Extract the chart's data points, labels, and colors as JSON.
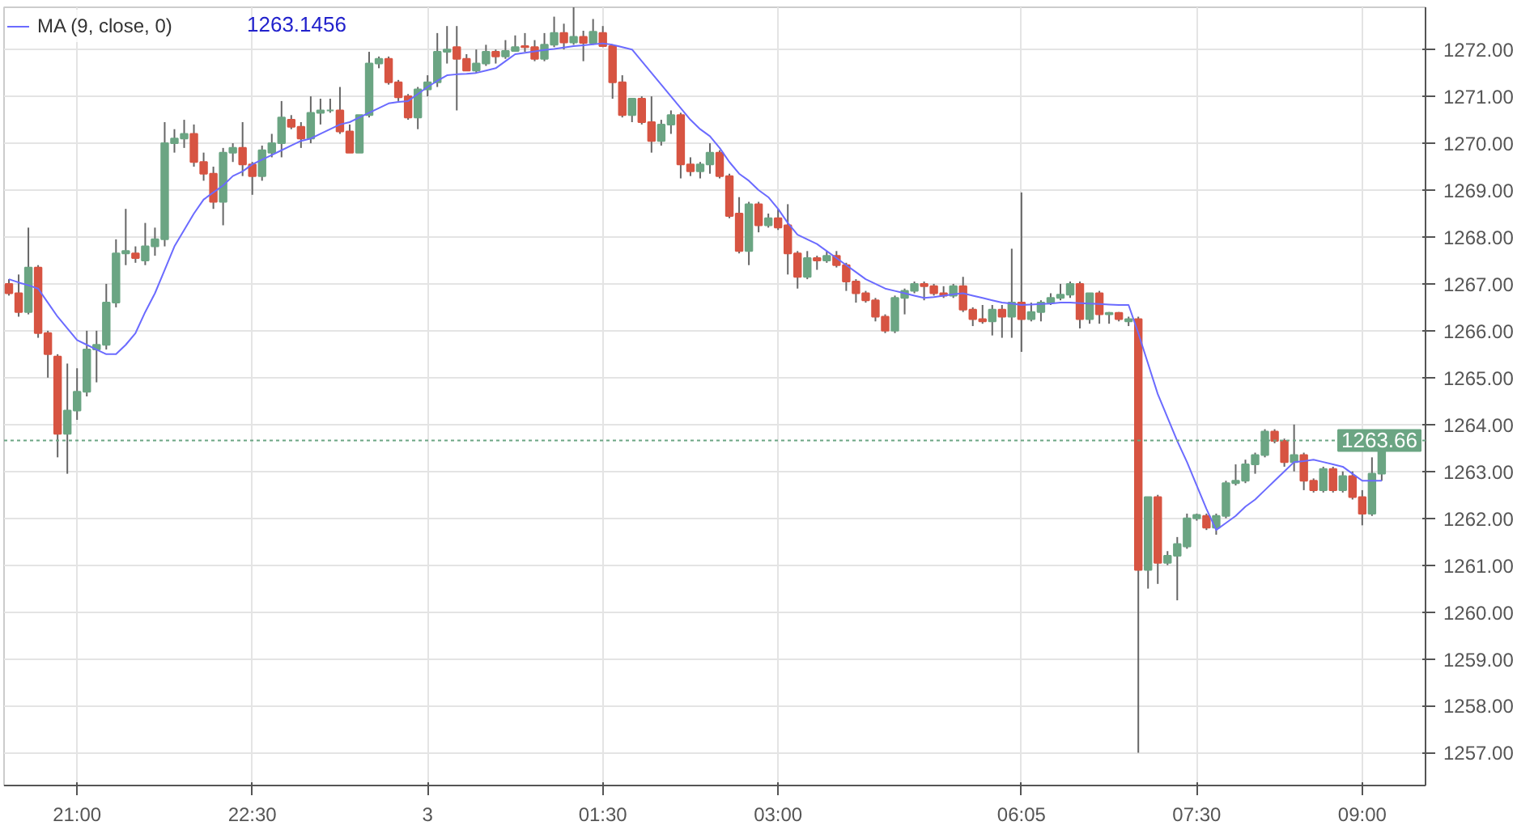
{
  "chart_data": {
    "type": "candlestick",
    "categories": [
      null,
      null,
      null,
      null,
      null,
      null,
      null,
      "21:00",
      null,
      null,
      null,
      null,
      null,
      null,
      null,
      null,
      null,
      null,
      null,
      null,
      null,
      null,
      null,
      null,
      null,
      "22:30",
      null,
      null,
      null,
      null,
      null,
      null,
      null,
      null,
      null,
      null,
      null,
      null,
      null,
      null,
      null,
      null,
      null,
      "3",
      null,
      null,
      null,
      null,
      null,
      null,
      null,
      null,
      null,
      null,
      null,
      null,
      null,
      null,
      null,
      null,
      null,
      "01:30",
      null,
      null,
      null,
      null,
      null,
      null,
      null,
      null,
      null,
      null,
      null,
      null,
      null,
      null,
      null,
      null,
      null,
      "03:00",
      null,
      null,
      null,
      null,
      null,
      null,
      null,
      null,
      null,
      null,
      null,
      null,
      null,
      null,
      null,
      null,
      null,
      null,
      null,
      null,
      null,
      null,
      null,
      null,
      "06:05",
      null,
      null,
      null,
      null,
      null,
      null,
      null,
      null,
      null,
      null,
      null,
      null,
      null,
      null,
      null,
      null,
      null,
      "07:30",
      null,
      null,
      null,
      null,
      null,
      null,
      null,
      null,
      null,
      null,
      null,
      null,
      null,
      null,
      null,
      null,
      "09:00",
      null,
      null
    ],
    "ohlc": [
      [
        1267.0,
        1267.1,
        1266.75,
        1266.8
      ],
      [
        1266.8,
        1267.2,
        1266.3,
        1266.4
      ],
      [
        1266.4,
        1268.2,
        1266.35,
        1267.35
      ],
      [
        1267.35,
        1267.4,
        1265.85,
        1265.95
      ],
      [
        1265.95,
        1266.0,
        1265.0,
        1265.5
      ],
      [
        1265.45,
        1265.5,
        1263.3,
        1263.8
      ],
      [
        1263.8,
        1265.3,
        1262.95,
        1264.3
      ],
      [
        1264.3,
        1265.2,
        1264.1,
        1264.7
      ],
      [
        1264.7,
        1266.0,
        1264.6,
        1265.6
      ],
      [
        1265.6,
        1266.0,
        1264.9,
        1265.7
      ],
      [
        1265.7,
        1267.0,
        1265.6,
        1266.6
      ],
      [
        1266.6,
        1267.95,
        1266.5,
        1267.65
      ],
      [
        1267.65,
        1268.6,
        1267.4,
        1267.7
      ],
      [
        1267.65,
        1267.8,
        1267.45,
        1267.55
      ],
      [
        1267.5,
        1268.3,
        1267.4,
        1267.8
      ],
      [
        1267.8,
        1268.2,
        1267.6,
        1267.95
      ],
      [
        1267.95,
        1270.45,
        1267.8,
        1270.0
      ],
      [
        1270.0,
        1270.3,
        1269.8,
        1270.1
      ],
      [
        1270.1,
        1270.5,
        1269.9,
        1270.2
      ],
      [
        1270.2,
        1270.4,
        1269.5,
        1269.6
      ],
      [
        1269.6,
        1269.8,
        1269.2,
        1269.35
      ],
      [
        1269.35,
        1269.5,
        1268.6,
        1268.75
      ],
      [
        1268.75,
        1269.9,
        1268.25,
        1269.8
      ],
      [
        1269.8,
        1270.0,
        1269.6,
        1269.9
      ],
      [
        1269.9,
        1270.45,
        1269.3,
        1269.55
      ],
      [
        1269.55,
        1269.6,
        1268.9,
        1269.3
      ],
      [
        1269.3,
        1269.95,
        1269.2,
        1269.85
      ],
      [
        1269.8,
        1270.2,
        1269.7,
        1270.0
      ],
      [
        1270.0,
        1270.9,
        1269.7,
        1270.55
      ],
      [
        1270.5,
        1270.6,
        1270.3,
        1270.35
      ],
      [
        1270.35,
        1270.45,
        1269.9,
        1270.1
      ],
      [
        1270.1,
        1271.0,
        1270.0,
        1270.65
      ],
      [
        1270.65,
        1270.95,
        1270.4,
        1270.7
      ],
      [
        1270.7,
        1270.95,
        1270.65,
        1270.7
      ],
      [
        1270.7,
        1271.2,
        1270.2,
        1270.25
      ],
      [
        1270.25,
        1270.4,
        1269.8,
        1269.8
      ],
      [
        1269.8,
        1270.6,
        1269.8,
        1270.6
      ],
      [
        1270.6,
        1271.95,
        1270.55,
        1271.7
      ],
      [
        1271.7,
        1271.85,
        1271.6,
        1271.8
      ],
      [
        1271.8,
        1271.85,
        1271.25,
        1271.3
      ],
      [
        1271.3,
        1271.35,
        1270.9,
        1270.98
      ],
      [
        1271.0,
        1271.05,
        1270.5,
        1270.55
      ],
      [
        1270.55,
        1271.2,
        1270.3,
        1271.15
      ],
      [
        1271.15,
        1271.45,
        1271.0,
        1271.3
      ],
      [
        1271.3,
        1272.35,
        1271.2,
        1271.95
      ],
      [
        1271.95,
        1272.5,
        1271.7,
        1272.0
      ],
      [
        1272.05,
        1272.5,
        1270.7,
        1271.8
      ],
      [
        1271.8,
        1271.9,
        1271.55,
        1271.55
      ],
      [
        1271.55,
        1272.0,
        1271.5,
        1271.7
      ],
      [
        1271.7,
        1272.1,
        1271.65,
        1271.95
      ],
      [
        1271.95,
        1272.0,
        1271.7,
        1271.85
      ],
      [
        1271.85,
        1272.2,
        1271.8,
        1271.97
      ],
      [
        1271.97,
        1272.3,
        1271.95,
        1272.05
      ],
      [
        1272.07,
        1272.35,
        1271.95,
        1272.05
      ],
      [
        1272.05,
        1272.2,
        1271.75,
        1271.8
      ],
      [
        1271.8,
        1272.35,
        1271.75,
        1272.1
      ],
      [
        1272.1,
        1272.7,
        1272.05,
        1272.35
      ],
      [
        1272.35,
        1272.55,
        1272.0,
        1272.15
      ],
      [
        1272.15,
        1272.9,
        1272.1,
        1272.27
      ],
      [
        1272.27,
        1272.4,
        1271.75,
        1272.14
      ],
      [
        1272.14,
        1272.65,
        1272.1,
        1272.38
      ],
      [
        1272.35,
        1272.5,
        1272.05,
        1272.07
      ],
      [
        1272.07,
        1272.1,
        1270.95,
        1271.3
      ],
      [
        1271.3,
        1271.45,
        1270.55,
        1270.6
      ],
      [
        1270.6,
        1270.95,
        1270.45,
        1270.95
      ],
      [
        1270.95,
        1271.0,
        1270.4,
        1270.45
      ],
      [
        1270.45,
        1271.0,
        1269.8,
        1270.05
      ],
      [
        1270.05,
        1270.5,
        1269.95,
        1270.4
      ],
      [
        1270.4,
        1270.7,
        1270.2,
        1270.6
      ],
      [
        1270.6,
        1270.65,
        1269.25,
        1269.55
      ],
      [
        1269.55,
        1269.7,
        1269.3,
        1269.4
      ],
      [
        1269.4,
        1269.6,
        1269.25,
        1269.55
      ],
      [
        1269.55,
        1270.0,
        1269.35,
        1269.8
      ],
      [
        1269.8,
        1269.85,
        1269.25,
        1269.3
      ],
      [
        1269.3,
        1269.35,
        1268.4,
        1268.45
      ],
      [
        1268.5,
        1268.85,
        1267.65,
        1267.7
      ],
      [
        1267.7,
        1268.75,
        1267.4,
        1268.7
      ],
      [
        1268.7,
        1268.75,
        1268.1,
        1268.25
      ],
      [
        1268.25,
        1268.5,
        1268.2,
        1268.4
      ],
      [
        1268.4,
        1268.6,
        1268.15,
        1268.2
      ],
      [
        1268.25,
        1268.7,
        1267.2,
        1267.65
      ],
      [
        1267.65,
        1267.7,
        1266.9,
        1267.15
      ],
      [
        1267.15,
        1267.7,
        1267.1,
        1267.55
      ],
      [
        1267.55,
        1267.6,
        1267.3,
        1267.5
      ],
      [
        1267.5,
        1267.7,
        1267.45,
        1267.6
      ],
      [
        1267.6,
        1267.7,
        1267.35,
        1267.4
      ],
      [
        1267.4,
        1267.45,
        1266.85,
        1267.05
      ],
      [
        1267.05,
        1267.1,
        1266.6,
        1266.8
      ],
      [
        1266.8,
        1266.85,
        1266.6,
        1266.65
      ],
      [
        1266.65,
        1266.7,
        1266.2,
        1266.3
      ],
      [
        1266.3,
        1266.35,
        1265.95,
        1266.0
      ],
      [
        1266.0,
        1266.75,
        1265.95,
        1266.7
      ],
      [
        1266.7,
        1266.9,
        1266.35,
        1266.85
      ],
      [
        1266.85,
        1267.05,
        1266.8,
        1267.0
      ],
      [
        1267.0,
        1267.05,
        1266.65,
        1266.95
      ],
      [
        1266.95,
        1267.0,
        1266.75,
        1266.8
      ],
      [
        1266.8,
        1266.95,
        1266.7,
        1266.75
      ],
      [
        1266.75,
        1267.0,
        1266.7,
        1266.95
      ],
      [
        1266.95,
        1267.15,
        1266.4,
        1266.45
      ],
      [
        1266.45,
        1266.5,
        1266.1,
        1266.25
      ],
      [
        1266.25,
        1266.55,
        1266.15,
        1266.2
      ],
      [
        1266.2,
        1266.55,
        1265.9,
        1266.45
      ],
      [
        1266.45,
        1266.55,
        1265.85,
        1266.3
      ],
      [
        1266.3,
        1267.75,
        1265.85,
        1266.6
      ],
      [
        1266.6,
        1268.95,
        1265.55,
        1266.25
      ],
      [
        1266.25,
        1266.6,
        1266.2,
        1266.4
      ],
      [
        1266.4,
        1266.65,
        1266.2,
        1266.6
      ],
      [
        1266.6,
        1266.8,
        1266.55,
        1266.7
      ],
      [
        1266.7,
        1267.0,
        1266.65,
        1266.77
      ],
      [
        1266.77,
        1267.05,
        1266.7,
        1267.0
      ],
      [
        1267.0,
        1267.05,
        1266.05,
        1266.25
      ],
      [
        1266.25,
        1266.8,
        1266.15,
        1266.8
      ],
      [
        1266.8,
        1266.85,
        1266.15,
        1266.35
      ],
      [
        1266.35,
        1266.4,
        1266.15,
        1266.38
      ],
      [
        1266.38,
        1266.4,
        1266.2,
        1266.25
      ],
      [
        1266.2,
        1266.3,
        1266.1,
        1266.25
      ],
      [
        1266.25,
        1266.3,
        1257.0,
        1260.9
      ],
      [
        1260.9,
        1262.45,
        1260.5,
        1262.45
      ],
      [
        1262.45,
        1262.5,
        1260.6,
        1261.05
      ],
      [
        1261.05,
        1261.3,
        1261.0,
        1261.2
      ],
      [
        1261.2,
        1261.6,
        1260.25,
        1261.45
      ],
      [
        1261.4,
        1262.1,
        1261.35,
        1262.0
      ],
      [
        1262.0,
        1262.1,
        1261.95,
        1262.07
      ],
      [
        1262.05,
        1262.1,
        1261.75,
        1261.8
      ],
      [
        1261.8,
        1262.1,
        1261.65,
        1262.05
      ],
      [
        1262.05,
        1262.8,
        1262.0,
        1262.75
      ],
      [
        1262.75,
        1263.15,
        1262.7,
        1262.8
      ],
      [
        1262.8,
        1263.25,
        1262.75,
        1263.15
      ],
      [
        1263.15,
        1263.4,
        1262.95,
        1263.35
      ],
      [
        1263.35,
        1263.9,
        1263.3,
        1263.85
      ],
      [
        1263.85,
        1263.9,
        1263.6,
        1263.65
      ],
      [
        1263.65,
        1263.7,
        1263.1,
        1263.2
      ],
      [
        1263.2,
        1264.0,
        1263.0,
        1263.35
      ],
      [
        1263.35,
        1263.4,
        1262.6,
        1262.8
      ],
      [
        1262.8,
        1262.85,
        1262.55,
        1262.6
      ],
      [
        1262.6,
        1263.1,
        1262.55,
        1263.05
      ],
      [
        1263.05,
        1263.1,
        1262.55,
        1262.6
      ],
      [
        1262.6,
        1263.0,
        1262.55,
        1262.9
      ],
      [
        1262.9,
        1263.0,
        1262.4,
        1262.45
      ],
      [
        1262.45,
        1262.6,
        1261.85,
        1262.1
      ],
      [
        1262.1,
        1263.3,
        1262.05,
        1262.95
      ],
      [
        1262.95,
        1263.7,
        1262.8,
        1263.66
      ]
    ],
    "colors": [
      "#d75442",
      "#d75442",
      "#6ba583",
      "#d75442",
      "#d75442",
      "#d75442",
      "#6ba583",
      "#6ba583",
      "#6ba583",
      "#6ba583",
      "#6ba583",
      "#6ba583",
      "#6ba583",
      "#d75442",
      "#6ba583",
      "#6ba583",
      "#6ba583",
      "#6ba583",
      "#6ba583",
      "#d75442",
      "#d75442",
      "#d75442",
      "#6ba583",
      "#6ba583",
      "#d75442",
      "#d75442",
      "#6ba583",
      "#6ba583",
      "#6ba583",
      "#d75442",
      "#d75442",
      "#6ba583",
      "#6ba583",
      "#6ba583",
      "#d75442",
      "#d75442",
      "#6ba583",
      "#6ba583",
      "#6ba583",
      "#d75442",
      "#d75442",
      "#d75442",
      "#6ba583",
      "#6ba583",
      "#6ba583",
      "#6ba583",
      "#d75442",
      "#d75442",
      "#6ba583",
      "#6ba583",
      "#d75442",
      "#6ba583",
      "#6ba583",
      "#d75442",
      "#d75442",
      "#6ba583",
      "#6ba583",
      "#d75442",
      "#6ba583",
      "#d75442",
      "#6ba583",
      "#d75442",
      "#d75442",
      "#d75442",
      "#6ba583",
      "#d75442",
      "#d75442",
      "#6ba583",
      "#6ba583",
      "#d75442",
      "#d75442",
      "#6ba583",
      "#6ba583",
      "#d75442",
      "#d75442",
      "#d75442",
      "#6ba583",
      "#d75442",
      "#6ba583",
      "#d75442",
      "#d75442",
      "#d75442",
      "#6ba583",
      "#d75442",
      "#6ba583",
      "#d75442",
      "#d75442",
      "#d75442",
      "#d75442",
      "#d75442",
      "#d75442",
      "#6ba583",
      "#6ba583",
      "#6ba583",
      "#d75442",
      "#d75442",
      "#d75442",
      "#6ba583",
      "#d75442",
      "#d75442",
      "#d75442",
      "#6ba583",
      "#d75442",
      "#6ba583",
      "#d75442",
      "#6ba583",
      "#6ba583",
      "#6ba583",
      "#6ba583",
      "#6ba583",
      "#d75442",
      "#6ba583",
      "#d75442",
      "#6ba583",
      "#d75442",
      "#6ba583",
      "#d75442",
      "#6ba583",
      "#d75442",
      "#6ba583",
      "#6ba583",
      "#6ba583",
      "#6ba583",
      "#d75442",
      "#6ba583",
      "#6ba583",
      "#6ba583",
      "#6ba583",
      "#6ba583",
      "#6ba583",
      "#d75442",
      "#d75442",
      "#6ba583",
      "#d75442",
      "#d75442",
      "#6ba583",
      "#d75442",
      "#6ba583",
      "#d75442",
      "#d75442",
      "#6ba583",
      "#6ba583"
    ],
    "series": [
      {
        "type": "line",
        "name": "MA (9, close, 0)",
        "color": "#6b6bff",
        "values": [
          1267.1,
          1267.03,
          1266.97,
          1266.9,
          1266.6,
          1266.3,
          1266.05,
          1265.8,
          1265.7,
          1265.6,
          1265.5,
          1265.5,
          1265.7,
          1265.95,
          1266.4,
          1266.8,
          1267.3,
          1267.8,
          1268.15,
          1268.5,
          1268.8,
          1268.95,
          1269.1,
          1269.3,
          1269.4,
          1269.55,
          1269.65,
          1269.75,
          1269.85,
          1269.95,
          1270.05,
          1270.1,
          1270.2,
          1270.3,
          1270.4,
          1270.45,
          1270.55,
          1270.65,
          1270.75,
          1270.85,
          1270.88,
          1270.9,
          1271.05,
          1271.2,
          1271.33,
          1271.45,
          1271.47,
          1271.48,
          1271.5,
          1271.55,
          1271.6,
          1271.75,
          1271.9,
          1271.93,
          1271.96,
          1271.99,
          1272.01,
          1272.04,
          1272.07,
          1272.09,
          1272.11,
          1272.13,
          1272.1,
          1272.05,
          1272.0,
          1271.75,
          1271.5,
          1271.25,
          1271.0,
          1270.75,
          1270.5,
          1270.3,
          1270.15,
          1269.9,
          1269.6,
          1269.35,
          1269.2,
          1269.0,
          1268.85,
          1268.6,
          1268.3,
          1268.05,
          1267.95,
          1267.85,
          1267.7,
          1267.55,
          1267.4,
          1267.25,
          1267.1,
          1267.0,
          1266.9,
          1266.85,
          1266.8,
          1266.75,
          1266.7,
          1266.72,
          1266.75,
          1266.78,
          1266.8,
          1266.75,
          1266.7,
          1266.65,
          1266.6,
          1266.58,
          1266.55,
          1266.56,
          1266.57,
          1266.58,
          1266.6,
          1266.6,
          1266.59,
          1266.58,
          1266.57,
          1266.56,
          1266.55,
          1266.55,
          1265.95,
          1265.3,
          1264.65,
          1264.15,
          1263.65,
          1263.2,
          1262.7,
          1262.2,
          1261.75,
          1261.9,
          1262.05,
          1262.25,
          1262.4,
          1262.6,
          1262.8,
          1263.0,
          1263.2,
          1263.22,
          1263.25,
          1263.2,
          1263.15,
          1263.1,
          1262.95,
          1262.8,
          1262.8,
          1262.8
        ]
      }
    ],
    "annotations": [
      "1263.1456"
    ],
    "ref_lines": [
      {
        "axis": "y",
        "value": 1263.66,
        "label": "1263.66",
        "color": "#6ba583",
        "line_style": "dotted"
      }
    ],
    "ylim": [
      1256.3,
      1272.9
    ],
    "yticks": [
      {
        "value": 1257,
        "label": "1257.00"
      },
      {
        "value": 1258,
        "label": "1258.00"
      },
      {
        "value": 1259,
        "label": "1259.00"
      },
      {
        "value": 1260,
        "label": "1260.00"
      },
      {
        "value": 1261,
        "label": "1261.00"
      },
      {
        "value": 1262,
        "label": "1262.00"
      },
      {
        "value": 1263,
        "label": "1263.00"
      },
      {
        "value": 1264,
        "label": "1264.00"
      },
      {
        "value": 1265,
        "label": "1265.00"
      },
      {
        "value": 1266,
        "label": "1266.00"
      },
      {
        "value": 1267,
        "label": "1267.00"
      },
      {
        "value": 1268,
        "label": "1268.00"
      },
      {
        "value": 1269,
        "label": "1269.00"
      },
      {
        "value": 1270,
        "label": "1270.00"
      },
      {
        "value": 1271,
        "label": "1271.00"
      },
      {
        "value": 1272,
        "label": "1272.00"
      }
    ],
    "grid": true,
    "legend": "top left"
  }
}
